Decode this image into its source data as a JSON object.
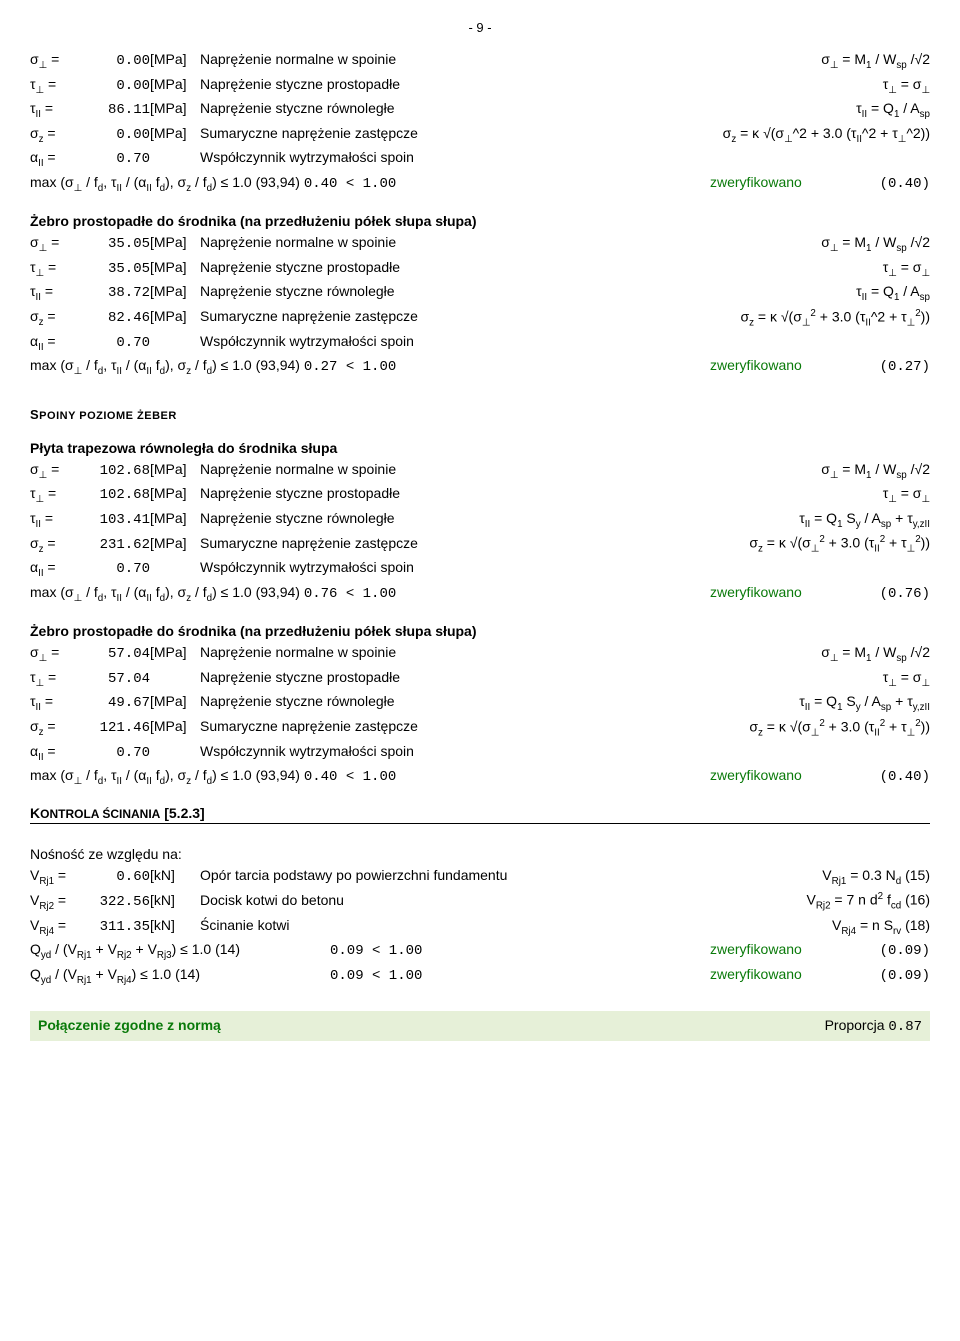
{
  "pageNumber": "- 9 -",
  "units": {
    "mpa": "[MPa]",
    "kn": "[kN]"
  },
  "labels": {
    "sigmaPerp": "σ⊥ =",
    "tauPerp": "τ⊥ =",
    "tauPar": "τII =",
    "sigmaZ": "σz =",
    "alphaPar": "αII =",
    "descSigmaPerp": "Naprężenie normalne w spoinie",
    "descTauPerp": "Naprężenie styczne prostopadłe",
    "descTauPar": "Naprężenie styczne równoległe",
    "descSigmaZ": "Sumaryczne naprężenie zastępcze",
    "descAlpha": "Współczynnik wytrzymałości spoin",
    "fSigmaPerp": "σ⊥ = M1 / Wsp /√2",
    "fTauPerp": "τ⊥ = σ⊥",
    "fTauPar1": "τII = Q1 / Asp",
    "fTauPar2": "τII = Q1 Sy / Asp + τy,zII",
    "fSigmaZ1": "σz = κ √(σ⊥^2 + 3.0 (τII^2 + τ⊥^2))",
    "fSigmaZ2": "σz = κ √(σ⊥² + 3.0 (τII^2 + τ⊥²))",
    "fSigmaZ3": "σz = κ √(σ⊥² + 3.0 (τII² + τ⊥²))",
    "maxLine": "max (σ⊥ / fd, τII / (αII fd), σz / fd) ≤ 1.0 (93,94) ",
    "verified": "zweryfikowano"
  },
  "block1": {
    "v1": "0.00",
    "v2": "0.00",
    "v3": "86.11",
    "v4": "0.00",
    "v5": "0.70",
    "cmp": "0.40 < 1.00",
    "ratio": "(0.40)"
  },
  "block2": {
    "title": "Żebro prostopadłe do środnika (na przedłużeniu półek słupa słupa)",
    "v1": "35.05",
    "v2": "35.05",
    "v3": "38.72",
    "v4": "82.46",
    "v5": "0.70",
    "cmp": "0.27 < 1.00",
    "ratio": "(0.27)"
  },
  "spoinyHeader": "Spoiny poziome żeber",
  "block3": {
    "title": "Płyta trapezowa równoległa do środnika słupa",
    "v1": "102.68",
    "v2": "102.68",
    "v3": "103.41",
    "v4": "231.62",
    "v5": "0.70",
    "cmp": "0.76 < 1.00",
    "ratio": "(0.76)"
  },
  "block4": {
    "title": "Żebro prostopadłe do środnika (na przedłużeniu półek słupa słupa)",
    "v1": "57.04",
    "v2": "57.04",
    "v3": "49.67",
    "v4": "121.46",
    "v5": "0.70",
    "cmp": "0.40 < 1.00",
    "ratio": "(0.40)"
  },
  "kontrola": {
    "header": "Kontrola ścinania [5.2.3]",
    "nosnoscTitle": "Nośność ze względu na:",
    "r1sym": "VRj1 =",
    "r1val": "0.60",
    "r1desc": "Opór tarcia podstawy po powierzchni fundamentu",
    "r1f": "VRj1 = 0.3 Nd (15)",
    "r2sym": "VRj2 =",
    "r2val": "322.56",
    "r2desc": "Docisk kotwi do betonu",
    "r2f": "VRj2 = 7 n d² fcd (16)",
    "r4sym": "VRj4 =",
    "r4val": "311.35",
    "r4desc": "Ścinanie kotwi",
    "r4f": "VRj4 = n Srv (18)",
    "q1": "Qyd / (VRj1 + VRj2 + VRj3) ≤ 1.0 (14)",
    "q2": "Qyd / (VRj1 + VRj4) ≤ 1.0 (14)",
    "qcmp": "0.09 < 1.00",
    "qratio": "(0.09)"
  },
  "footer": {
    "left": "Połączenie zgodne z normą",
    "rightLabel": "Proporcja ",
    "rightVal": "0.87"
  }
}
